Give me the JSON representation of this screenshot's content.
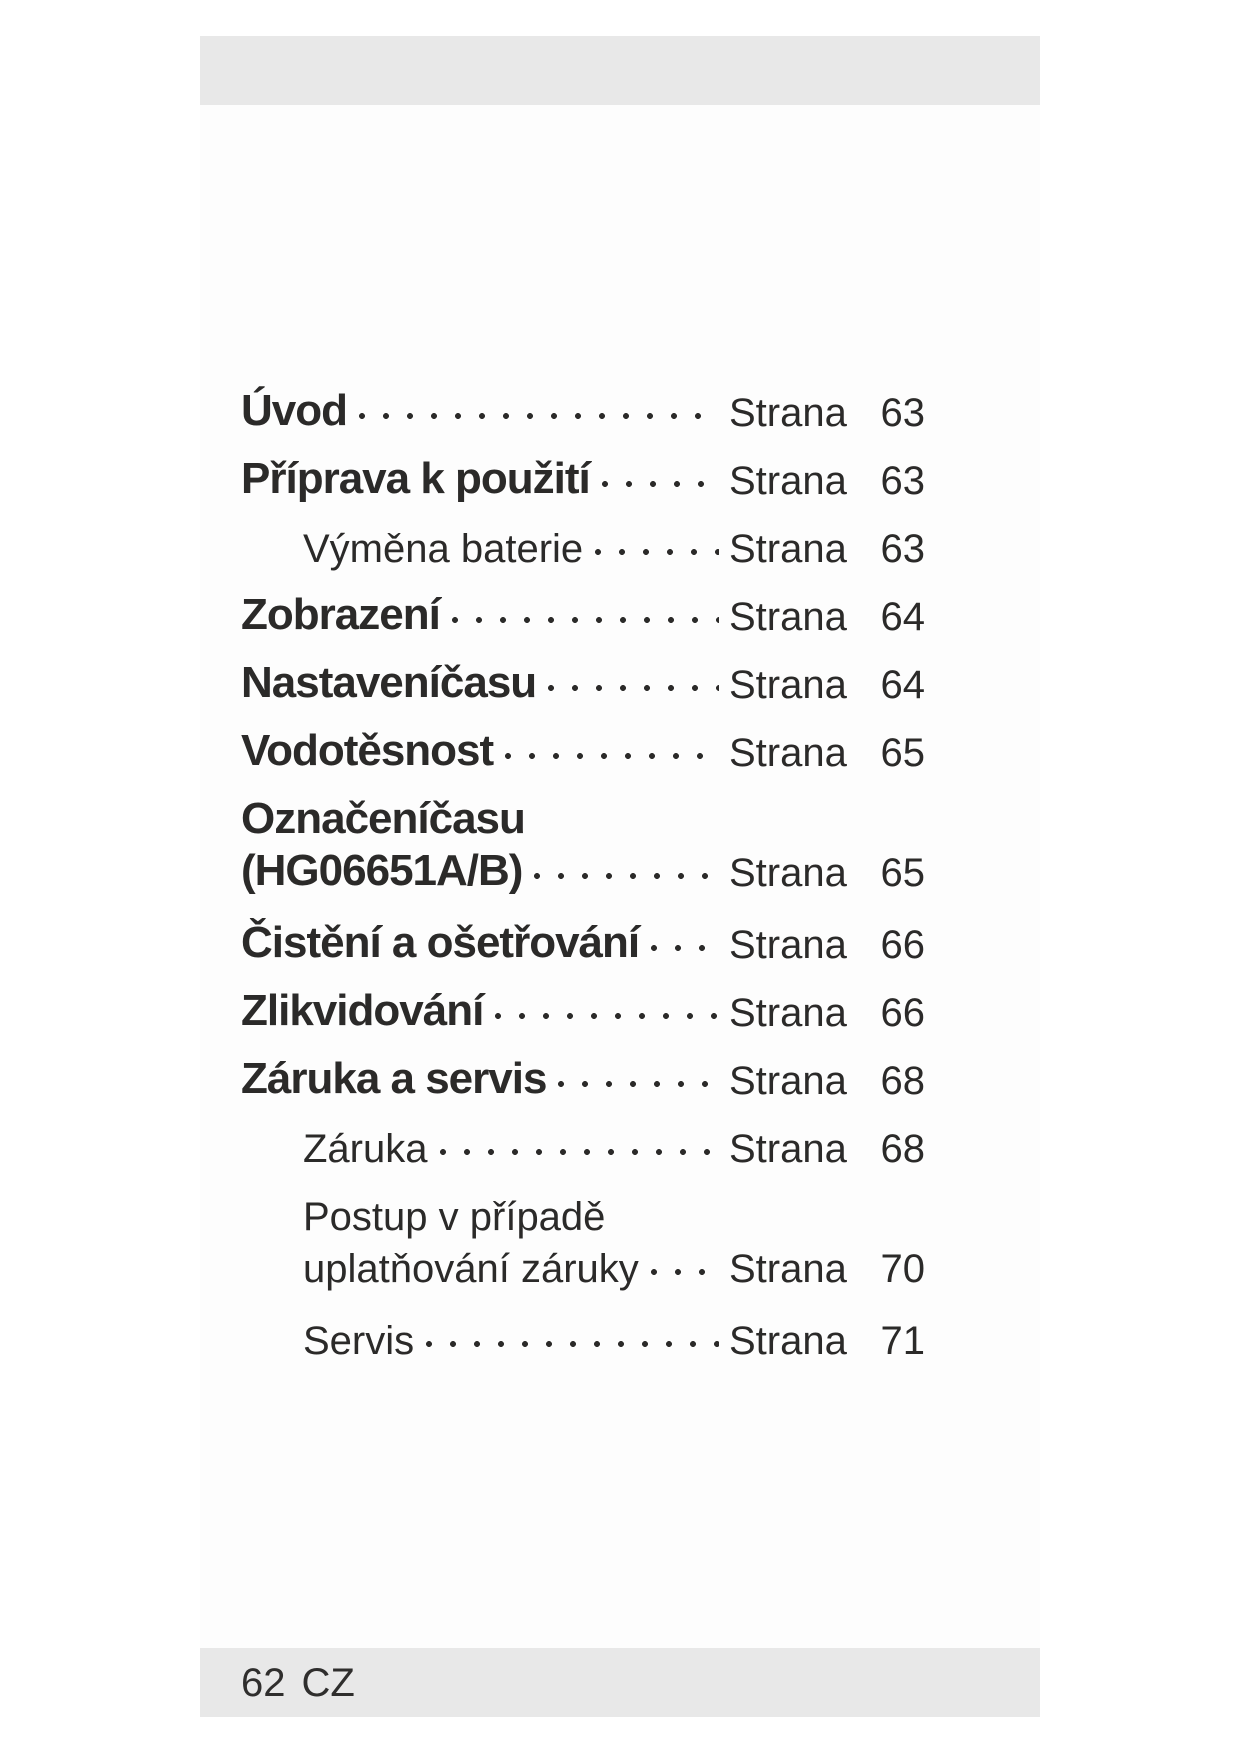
{
  "document": {
    "toc": {
      "page_word": "Strana",
      "rows": [
        {
          "label": "Úvod",
          "page": "63"
        },
        {
          "label": "Příprava k použití",
          "page": "63"
        },
        {
          "label": "Výměna baterie",
          "page": "63"
        },
        {
          "label": "Zobrazení",
          "page": "64"
        },
        {
          "label": "Nastaveníčasu",
          "page": "64"
        },
        {
          "label": "Vodotěsnost",
          "page": "65"
        },
        {
          "label": "Označeníčasu",
          "page": ""
        },
        {
          "label": "(HG06651A/B)",
          "page": "65"
        },
        {
          "label": "Čistění a ošetřování",
          "page": "66"
        },
        {
          "label": "Zlikvidování",
          "page": "66"
        },
        {
          "label": "Záruka a servis",
          "page": "68"
        },
        {
          "label": "Záruka",
          "page": "68"
        },
        {
          "label": "Postup v případě",
          "page": ""
        },
        {
          "label": "uplatňování záruky",
          "page": "70"
        },
        {
          "label": "Servis",
          "page": "71"
        }
      ]
    },
    "footer": {
      "page_number": "62",
      "country_code": "CZ"
    },
    "colors": {
      "text": "#2b2a29",
      "bar": "#e8e8e8",
      "page_bg": "#fdfdfd"
    }
  }
}
